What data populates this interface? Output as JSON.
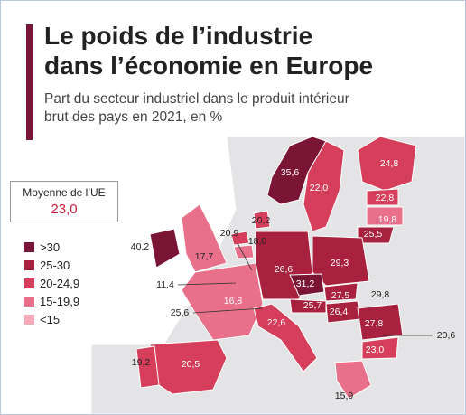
{
  "header": {
    "title_lines": [
      "Le poids de l’industrie",
      "dans l’économie en Europe"
    ],
    "subtitle_lines": [
      "Part du secteur industriel dans le produit intérieur",
      "brut des pays en 2021, en %"
    ]
  },
  "average": {
    "label": "Moyenne de l’UE",
    "value": "23,0"
  },
  "legend": [
    {
      "label": ">30",
      "color": "#7b1535"
    },
    {
      "label": "25-30",
      "color": "#a8213f"
    },
    {
      "label": "20-24,9",
      "color": "#d63f5b"
    },
    {
      "label": "15-19,9",
      "color": "#e8708a"
    },
    {
      "label": "<15",
      "color": "#f5a9b9"
    }
  ],
  "map": {
    "labels": [
      "35,6",
      "22,0",
      "24,8",
      "22,8",
      "19,8",
      "25,5",
      "40,2",
      "17,7",
      "20,2",
      "20,9",
      "18,0",
      "26,6",
      "29,3",
      "11,4",
      "31,2",
      "27,5",
      "29,8",
      "25,6",
      "16,8",
      "25,7",
      "26,4",
      "22,6",
      "27,8",
      "20,6",
      "23,0",
      "19,2",
      "20,5",
      "15,9"
    ]
  }
}
